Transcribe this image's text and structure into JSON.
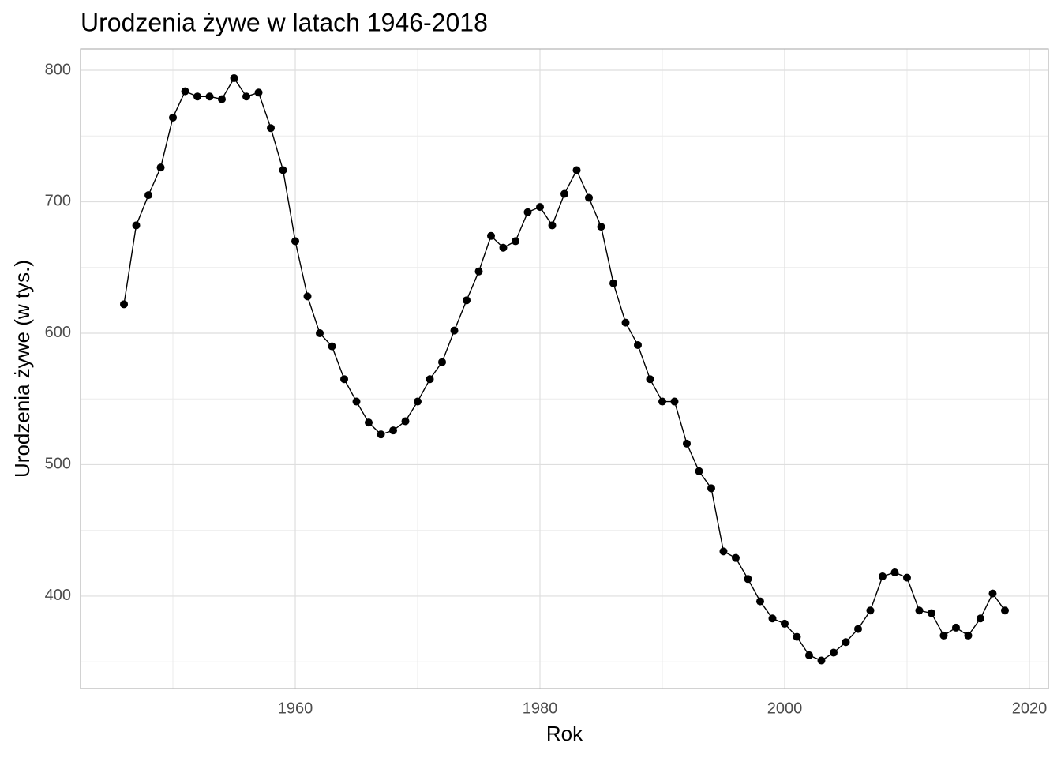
{
  "chart_data": {
    "type": "line",
    "title": "Urodzenia żywe w latach 1946-2018",
    "x_label": "Rok",
    "y_label": "Urodzenia żywe (w tys.)",
    "x": [
      1946,
      1947,
      1948,
      1949,
      1950,
      1951,
      1952,
      1953,
      1954,
      1955,
      1956,
      1957,
      1958,
      1959,
      1960,
      1961,
      1962,
      1963,
      1964,
      1965,
      1966,
      1967,
      1968,
      1969,
      1970,
      1971,
      1972,
      1973,
      1974,
      1975,
      1976,
      1977,
      1978,
      1979,
      1980,
      1981,
      1982,
      1983,
      1984,
      1985,
      1986,
      1987,
      1988,
      1989,
      1990,
      1991,
      1992,
      1993,
      1994,
      1995,
      1996,
      1997,
      1998,
      1999,
      2000,
      2001,
      2002,
      2003,
      2004,
      2005,
      2006,
      2007,
      2008,
      2009,
      2010,
      2011,
      2012,
      2013,
      2014,
      2015,
      2016,
      2017,
      2018
    ],
    "series": [
      {
        "color": "#000000",
        "values": [
          622,
          682,
          705,
          726,
          764,
          784,
          780,
          780,
          778,
          794,
          780,
          783,
          756,
          724,
          670,
          628,
          600,
          590,
          565,
          548,
          532,
          523,
          526,
          533,
          548,
          565,
          578,
          602,
          625,
          647,
          674,
          665,
          670,
          692,
          696,
          682,
          706,
          724,
          703,
          681,
          638,
          608,
          591,
          565,
          548,
          548,
          516,
          495,
          482,
          434,
          429,
          413,
          396,
          383,
          379,
          369,
          355,
          351,
          357,
          365,
          375,
          389,
          415,
          418,
          414,
          389,
          387,
          370,
          376,
          370,
          383,
          402,
          389
        ]
      }
    ],
    "xlim": [
      1942.45,
      2021.55
    ],
    "ylim": [
      329.7,
      816.2
    ],
    "xticks": [
      1960,
      1980,
      2000,
      2020
    ],
    "yticks": [
      400,
      500,
      600,
      700,
      800
    ],
    "minor_xticks": [
      1950,
      1970,
      1990,
      2010
    ],
    "minor_yticks": [
      350,
      450,
      550,
      650,
      750
    ],
    "grid": true
  }
}
